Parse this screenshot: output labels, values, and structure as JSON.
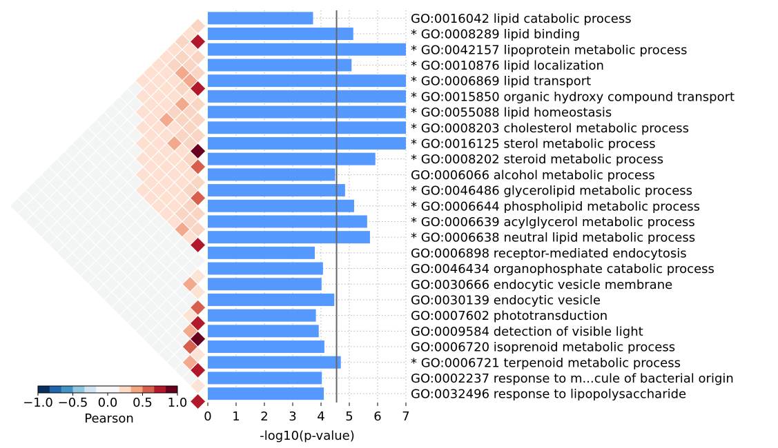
{
  "chart_data": {
    "type": "bar",
    "orientation": "horizontal",
    "xlabel": "-log10(p-value)",
    "xlim": [
      0,
      7
    ],
    "x_ticks": [
      "0",
      "1",
      "2",
      "3",
      "4",
      "5",
      "6",
      "7"
    ],
    "threshold": 4.55,
    "grid": "dotted vertical and horizontal",
    "bar_color": "#5599ff",
    "categories": [
      "GO:0016042 lipid catabolic process",
      "* GO:0008289 lipid binding",
      "* GO:0042157 lipoprotein metabolic process",
      "* GO:0010876 lipid localization",
      "* GO:0006869 lipid transport",
      "* GO:0015850 organic hydroxy compound transport",
      "* GO:0055088 lipid homeostasis",
      "* GO:0008203 cholesterol metabolic process",
      "* GO:0016125 sterol metabolic process",
      "* GO:0008202 steroid metabolic process",
      "GO:0006066 alcohol metabolic process",
      "* GO:0046486 glycerolipid metabolic process",
      "* GO:0006644 phospholipid metabolic process",
      "* GO:0006639 acylglycerol metabolic process",
      "* GO:0006638 neutral lipid metabolic process",
      "GO:0006898 receptor-mediated endocytosis",
      "GO:0046434 organophosphate catabolic process",
      "GO:0030666 endocytic vesicle membrane",
      "GO:0030139 endocytic vesicle",
      "GO:0007602 phototransduction",
      "GO:0009584 detection of visible light",
      "GO:0006720 isoprenoid metabolic process",
      "* GO:0006721 terpenoid metabolic process",
      "GO:0002237 response to m...cule of bacterial origin",
      "GO:0032496 response to lipopolysaccharide"
    ],
    "values": [
      3.72,
      5.14,
      7.0,
      5.08,
      7.0,
      7.0,
      7.0,
      7.0,
      7.0,
      5.92,
      4.5,
      4.85,
      5.17,
      5.63,
      5.73,
      3.78,
      4.07,
      4.02,
      4.47,
      3.82,
      3.92,
      4.12,
      4.7,
      4.03,
      4.1
    ],
    "heatmap": {
      "title": "Pearson",
      "colorbar_ticks": [
        "−1.0",
        "−0.5",
        "0.0",
        "0.5",
        "1.0"
      ],
      "range": [
        -1,
        1
      ],
      "colors": {
        "neg_strong": "#053061",
        "neutral": "#f7f7f7",
        "pos_strong": "#67001f"
      }
    }
  }
}
